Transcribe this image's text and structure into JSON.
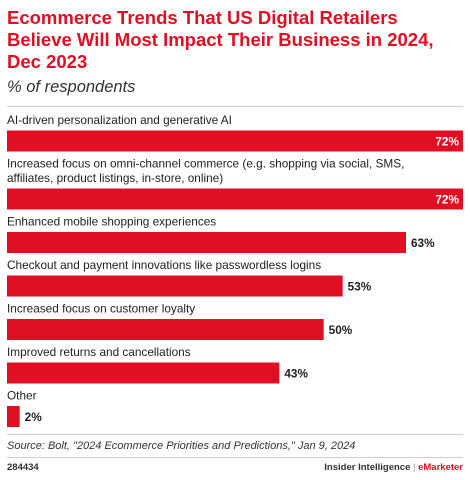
{
  "header": {
    "title": "Ecommerce Trends That US Digital Retailers Believe Will Most Impact Their Business in 2024, Dec 2023",
    "subtitle": "% of respondents"
  },
  "chart_data": {
    "type": "bar",
    "orientation": "horizontal",
    "categories": [
      [
        "AI-driven personalization and generative AI"
      ],
      [
        "Increased focus on omni-channel commerce (e.g. shopping via social, SMS,",
        "affiliates, product listings, in-store, online)"
      ],
      [
        "Enhanced mobile shopping experiences"
      ],
      [
        "Checkout and payment innovations like passwordless logins"
      ],
      [
        "Increased focus on customer loyalty"
      ],
      [
        "Improved returns and cancellations"
      ],
      [
        "Other"
      ]
    ],
    "values": [
      72,
      72,
      63,
      53,
      50,
      43,
      2
    ],
    "value_labels": [
      "72%",
      "72%",
      "63%",
      "53%",
      "50%",
      "43%",
      "2%"
    ],
    "xlim": [
      0,
      72
    ],
    "bar_color": "#e00f23",
    "grid": false
  },
  "footer": {
    "source": "Source: Bolt, \"2024 Ecommerce Priorities and Predictions,\" Jan 9, 2024",
    "chart_id": "284434",
    "brand_left": "Insider Intelligence",
    "brand_sep": "|",
    "brand_accent": "eMarketer"
  }
}
